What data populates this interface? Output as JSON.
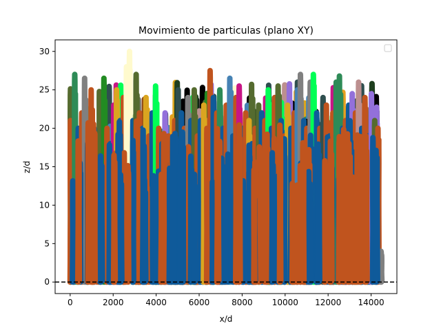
{
  "chart_data": {
    "type": "line",
    "title": "Movimiento de particulas (plano XY)",
    "xlabel": "x/d",
    "ylabel": "z/d",
    "xlim": [
      -700,
      15200
    ],
    "ylim": [
      -1.5,
      31.5
    ],
    "x_ticks": [
      0,
      2000,
      4000,
      6000,
      8000,
      10000,
      12000,
      14000
    ],
    "y_ticks": [
      0,
      5,
      10,
      15,
      20,
      25,
      30
    ],
    "grid": false,
    "legend": "top-right",
    "legend_entries": [],
    "reference_line": {
      "y": 0,
      "style": "dashed",
      "color": "#000000"
    },
    "palette": [
      "#2e8b57",
      "#8b4513",
      "#228b22",
      "#daa520",
      "#556b2f",
      "#9370db",
      "#c71585",
      "#00ff55",
      "#4682b4",
      "#808080",
      "#000000",
      "#fffacd",
      "#1f3f1f",
      "#e6a020",
      "#bc8f8f",
      "#2f4f4f"
    ],
    "front_colors": [
      "#0f5a9a",
      "#c0541e"
    ],
    "trajectories": [
      {
        "x0": 0,
        "peak": 21,
        "color": "#c0541e"
      },
      {
        "x0": 200,
        "peak": 27,
        "color": "#2e8b57"
      },
      {
        "x0": 350,
        "peak": 20,
        "color": "#0f5a9a"
      },
      {
        "x0": 520,
        "peak": 22,
        "color": "#c0541e"
      },
      {
        "x0": 650,
        "peak": 26.5,
        "color": "#808080"
      },
      {
        "x0": 800,
        "peak": 18,
        "color": "#0f5a9a"
      },
      {
        "x0": 950,
        "peak": 25,
        "color": "#c0541e"
      },
      {
        "x0": 1100,
        "peak": 20,
        "color": "#0f5a9a"
      },
      {
        "x0": 1250,
        "peak": 19,
        "color": "#c0541e"
      },
      {
        "x0": 1400,
        "peak": 24,
        "color": "#556b2f"
      },
      {
        "x0": 1550,
        "peak": 26.5,
        "color": "#228b22"
      },
      {
        "x0": 1700,
        "peak": 20,
        "color": "#c0541e"
      },
      {
        "x0": 1850,
        "peak": 18,
        "color": "#0f5a9a"
      },
      {
        "x0": 2000,
        "peak": 23,
        "color": "#c71585"
      },
      {
        "x0": 2150,
        "peak": 25,
        "color": "#daa520"
      },
      {
        "x0": 2300,
        "peak": 21,
        "color": "#0f5a9a"
      },
      {
        "x0": 2450,
        "peak": 24,
        "color": "#c0541e"
      },
      {
        "x0": 2600,
        "peak": 28,
        "color": "#fffacd"
      },
      {
        "x0": 2750,
        "peak": 30,
        "color": "#fffacd"
      },
      {
        "x0": 2900,
        "peak": 21,
        "color": "#0f5a9a"
      },
      {
        "x0": 3050,
        "peak": 27,
        "color": "#556b2f"
      },
      {
        "x0": 3200,
        "peak": 22,
        "color": "#c0541e"
      },
      {
        "x0": 3350,
        "peak": 20,
        "color": "#0f5a9a"
      },
      {
        "x0": 3500,
        "peak": 24,
        "color": "#daa520"
      },
      {
        "x0": 3650,
        "peak": 19,
        "color": "#c0541e"
      },
      {
        "x0": 3800,
        "peak": 22,
        "color": "#0f5a9a"
      },
      {
        "x0": 3950,
        "peak": 25.5,
        "color": "#00ff55"
      },
      {
        "x0": 4100,
        "peak": 20,
        "color": "#c0541e"
      },
      {
        "x0": 4250,
        "peak": 18,
        "color": "#0f5a9a"
      },
      {
        "x0": 4400,
        "peak": 22,
        "color": "#9370db"
      },
      {
        "x0": 4550,
        "peak": 19,
        "color": "#c0541e"
      },
      {
        "x0": 4700,
        "peak": 17,
        "color": "#0f5a9a"
      },
      {
        "x0": 4850,
        "peak": 21,
        "color": "#c0541e"
      },
      {
        "x0": 5000,
        "peak": 25,
        "color": "#2f4f4f"
      },
      {
        "x0": 5150,
        "peak": 22,
        "color": "#0f5a9a"
      },
      {
        "x0": 5300,
        "peak": 20,
        "color": "#c0541e"
      },
      {
        "x0": 5450,
        "peak": 24,
        "color": "#808080"
      },
      {
        "x0": 5600,
        "peak": 21,
        "color": "#0f5a9a"
      },
      {
        "x0": 5750,
        "peak": 25,
        "color": "#556b2f"
      },
      {
        "x0": 5900,
        "peak": 19,
        "color": "#c0541e"
      },
      {
        "x0": 6050,
        "peak": 21,
        "color": "#0f5a9a"
      },
      {
        "x0": 6200,
        "peak": 23,
        "color": "#daa520"
      },
      {
        "x0": 6350,
        "peak": 20,
        "color": "#c0541e"
      },
      {
        "x0": 6500,
        "peak": 27.5,
        "color": "#c0541e"
      },
      {
        "x0": 6650,
        "peak": 24,
        "color": "#0f5a9a"
      },
      {
        "x0": 6800,
        "peak": 22,
        "color": "#c0541e"
      },
      {
        "x0": 6950,
        "peak": 25,
        "color": "#2e8b57"
      },
      {
        "x0": 7100,
        "peak": 20,
        "color": "#0f5a9a"
      },
      {
        "x0": 7250,
        "peak": 23,
        "color": "#c0541e"
      },
      {
        "x0": 7400,
        "peak": 26.5,
        "color": "#4682b4"
      },
      {
        "x0": 7550,
        "peak": 19,
        "color": "#0f5a9a"
      },
      {
        "x0": 7700,
        "peak": 24,
        "color": "#c0541e"
      },
      {
        "x0": 7850,
        "peak": 25.5,
        "color": "#c71585"
      },
      {
        "x0": 8000,
        "peak": 20,
        "color": "#0f5a9a"
      },
      {
        "x0": 8150,
        "peak": 22,
        "color": "#c0541e"
      },
      {
        "x0": 8300,
        "peak": 21,
        "color": "#daa520"
      },
      {
        "x0": 8450,
        "peak": 18,
        "color": "#0f5a9a"
      },
      {
        "x0": 8600,
        "peak": 20,
        "color": "#c0541e"
      },
      {
        "x0": 8750,
        "peak": 23,
        "color": "#556b2f"
      },
      {
        "x0": 8900,
        "peak": 22,
        "color": "#0f5a9a"
      },
      {
        "x0": 9050,
        "peak": 21,
        "color": "#c0541e"
      },
      {
        "x0": 9200,
        "peak": 25,
        "color": "#00ff55"
      },
      {
        "x0": 9350,
        "peak": 20,
        "color": "#0f5a9a"
      },
      {
        "x0": 9500,
        "peak": 24,
        "color": "#c0541e"
      },
      {
        "x0": 9650,
        "peak": 25.5,
        "color": "#556b2f"
      },
      {
        "x0": 9800,
        "peak": 21,
        "color": "#0f5a9a"
      },
      {
        "x0": 9950,
        "peak": 19,
        "color": "#c0541e"
      },
      {
        "x0": 10100,
        "peak": 23,
        "color": "#daa520"
      },
      {
        "x0": 10250,
        "peak": 20,
        "color": "#0f5a9a"
      },
      {
        "x0": 10400,
        "peak": 22,
        "color": "#c0541e"
      },
      {
        "x0": 10550,
        "peak": 25,
        "color": "#4682b4"
      },
      {
        "x0": 10700,
        "peak": 27,
        "color": "#808080"
      },
      {
        "x0": 10850,
        "peak": 21,
        "color": "#0f5a9a"
      },
      {
        "x0": 11000,
        "peak": 20,
        "color": "#c0541e"
      },
      {
        "x0": 11150,
        "peak": 26,
        "color": "#808080"
      },
      {
        "x0": 11300,
        "peak": 27,
        "color": "#00ff55"
      },
      {
        "x0": 11450,
        "peak": 22,
        "color": "#0f5a9a"
      },
      {
        "x0": 11600,
        "peak": 20,
        "color": "#c0541e"
      },
      {
        "x0": 11750,
        "peak": 24,
        "color": "#2f4f4f"
      },
      {
        "x0": 11900,
        "peak": 23,
        "color": "#c0541e"
      },
      {
        "x0": 12050,
        "peak": 19,
        "color": "#0f5a9a"
      },
      {
        "x0": 12200,
        "peak": 22,
        "color": "#c0541e"
      },
      {
        "x0": 12350,
        "peak": 26,
        "color": "#2e8b57"
      },
      {
        "x0": 12500,
        "peak": 26.8,
        "color": "#2e8b57"
      },
      {
        "x0": 12650,
        "peak": 20,
        "color": "#0f5a9a"
      },
      {
        "x0": 12800,
        "peak": 21,
        "color": "#c0541e"
      },
      {
        "x0": 12950,
        "peak": 23,
        "color": "#0f5a9a"
      },
      {
        "x0": 13100,
        "peak": 24.5,
        "color": "#9370db"
      },
      {
        "x0": 13250,
        "peak": 22,
        "color": "#c0541e"
      },
      {
        "x0": 13400,
        "peak": 26,
        "color": "#bc8f8f"
      },
      {
        "x0": 13550,
        "peak": 20,
        "color": "#0f5a9a"
      },
      {
        "x0": 13700,
        "peak": 24,
        "color": "#c0541e"
      },
      {
        "x0": 13850,
        "peak": 19,
        "color": "#0f5a9a"
      },
      {
        "x0": 14000,
        "peak": 24.5,
        "color": "#9370db"
      },
      {
        "x0": 14150,
        "peak": 21,
        "color": "#556b2f"
      },
      {
        "x0": 14300,
        "peak": 20,
        "color": "#c0541e"
      },
      {
        "x0": 14450,
        "peak": 4,
        "color": "#808080"
      }
    ]
  }
}
